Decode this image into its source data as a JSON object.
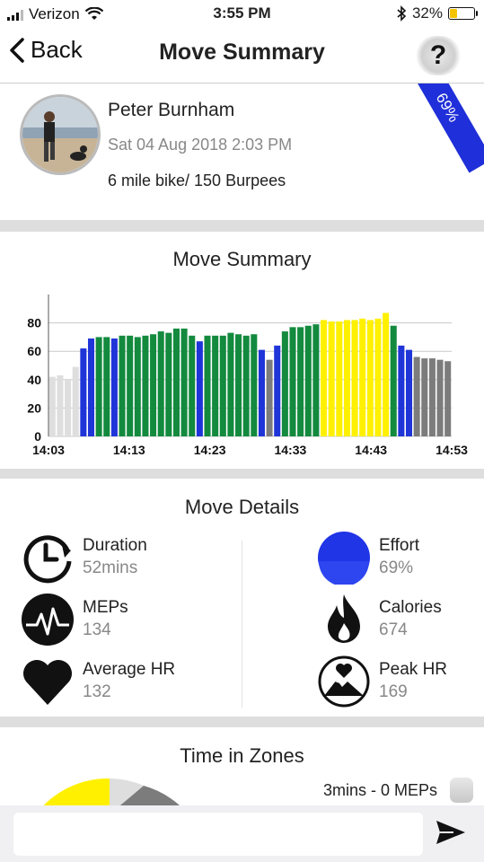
{
  "status_bar": {
    "carrier": "Verizon",
    "time": "3:55 PM",
    "battery": "32%",
    "battery_level": 0.32
  },
  "nav": {
    "back_label": "Back",
    "title": "Move Summary",
    "help_label": "?"
  },
  "profile": {
    "name": "Peter Burnham",
    "date": "Sat 04 Aug 2018 2:03 PM",
    "note": "6 mile bike/ 150 Burpees",
    "effort_badge": "69%"
  },
  "summary": {
    "title": "Move Summary",
    "chart_data": {
      "type": "bar",
      "x_tick_labels": [
        "14:03",
        "14:13",
        "14:23",
        "14:33",
        "14:43",
        "14:53"
      ],
      "y_tick_labels": [
        "0",
        "20",
        "40",
        "60",
        "80"
      ],
      "ylim": [
        0,
        100
      ],
      "grid": true,
      "colors": {
        "grey_light": "#dedede",
        "blue": "#1f35d8",
        "green": "#138a3e",
        "grey_dark": "#7c7c7c",
        "yellow": "#fff000"
      },
      "values": [
        42,
        43,
        40,
        49,
        62,
        69,
        70,
        70,
        69,
        71,
        71,
        70,
        71,
        72,
        74,
        73,
        76,
        76,
        71,
        67,
        71,
        71,
        71,
        73,
        72,
        71,
        72,
        61,
        54,
        64,
        74,
        77,
        77,
        78,
        79,
        82,
        81,
        81,
        82,
        82,
        83,
        82,
        83,
        87,
        78,
        64,
        61,
        56,
        55,
        55,
        54,
        53
      ],
      "bar_colors": [
        "grey_light",
        "grey_light",
        "grey_light",
        "grey_light",
        "blue",
        "blue",
        "green",
        "green",
        "blue",
        "green",
        "green",
        "green",
        "green",
        "green",
        "green",
        "green",
        "green",
        "green",
        "green",
        "blue",
        "green",
        "green",
        "green",
        "green",
        "green",
        "green",
        "green",
        "blue",
        "grey_dark",
        "blue",
        "green",
        "green",
        "green",
        "green",
        "green",
        "yellow",
        "yellow",
        "yellow",
        "yellow",
        "yellow",
        "yellow",
        "yellow",
        "yellow",
        "yellow",
        "green",
        "blue",
        "blue",
        "grey_dark",
        "grey_dark",
        "grey_dark",
        "grey_dark",
        "grey_dark"
      ]
    }
  },
  "details": {
    "title": "Move Details",
    "items": [
      {
        "label": "Duration",
        "value": "52mins",
        "icon": "clock-icon"
      },
      {
        "label": "Effort",
        "value": "69%",
        "icon": "effort-circle-icon"
      },
      {
        "label": "MEPs",
        "value": "134",
        "icon": "heartbeat-icon"
      },
      {
        "label": "Calories",
        "value": "674",
        "icon": "flame-icon"
      },
      {
        "label": "Average HR",
        "value": "132",
        "icon": "heart-icon"
      },
      {
        "label": "Peak HR",
        "value": "169",
        "icon": "peak-heart-icon"
      }
    ]
  },
  "zones": {
    "title": "Time in Zones",
    "legend_text": "3mins - 0 MEPs"
  },
  "composer": {
    "placeholder": ""
  }
}
